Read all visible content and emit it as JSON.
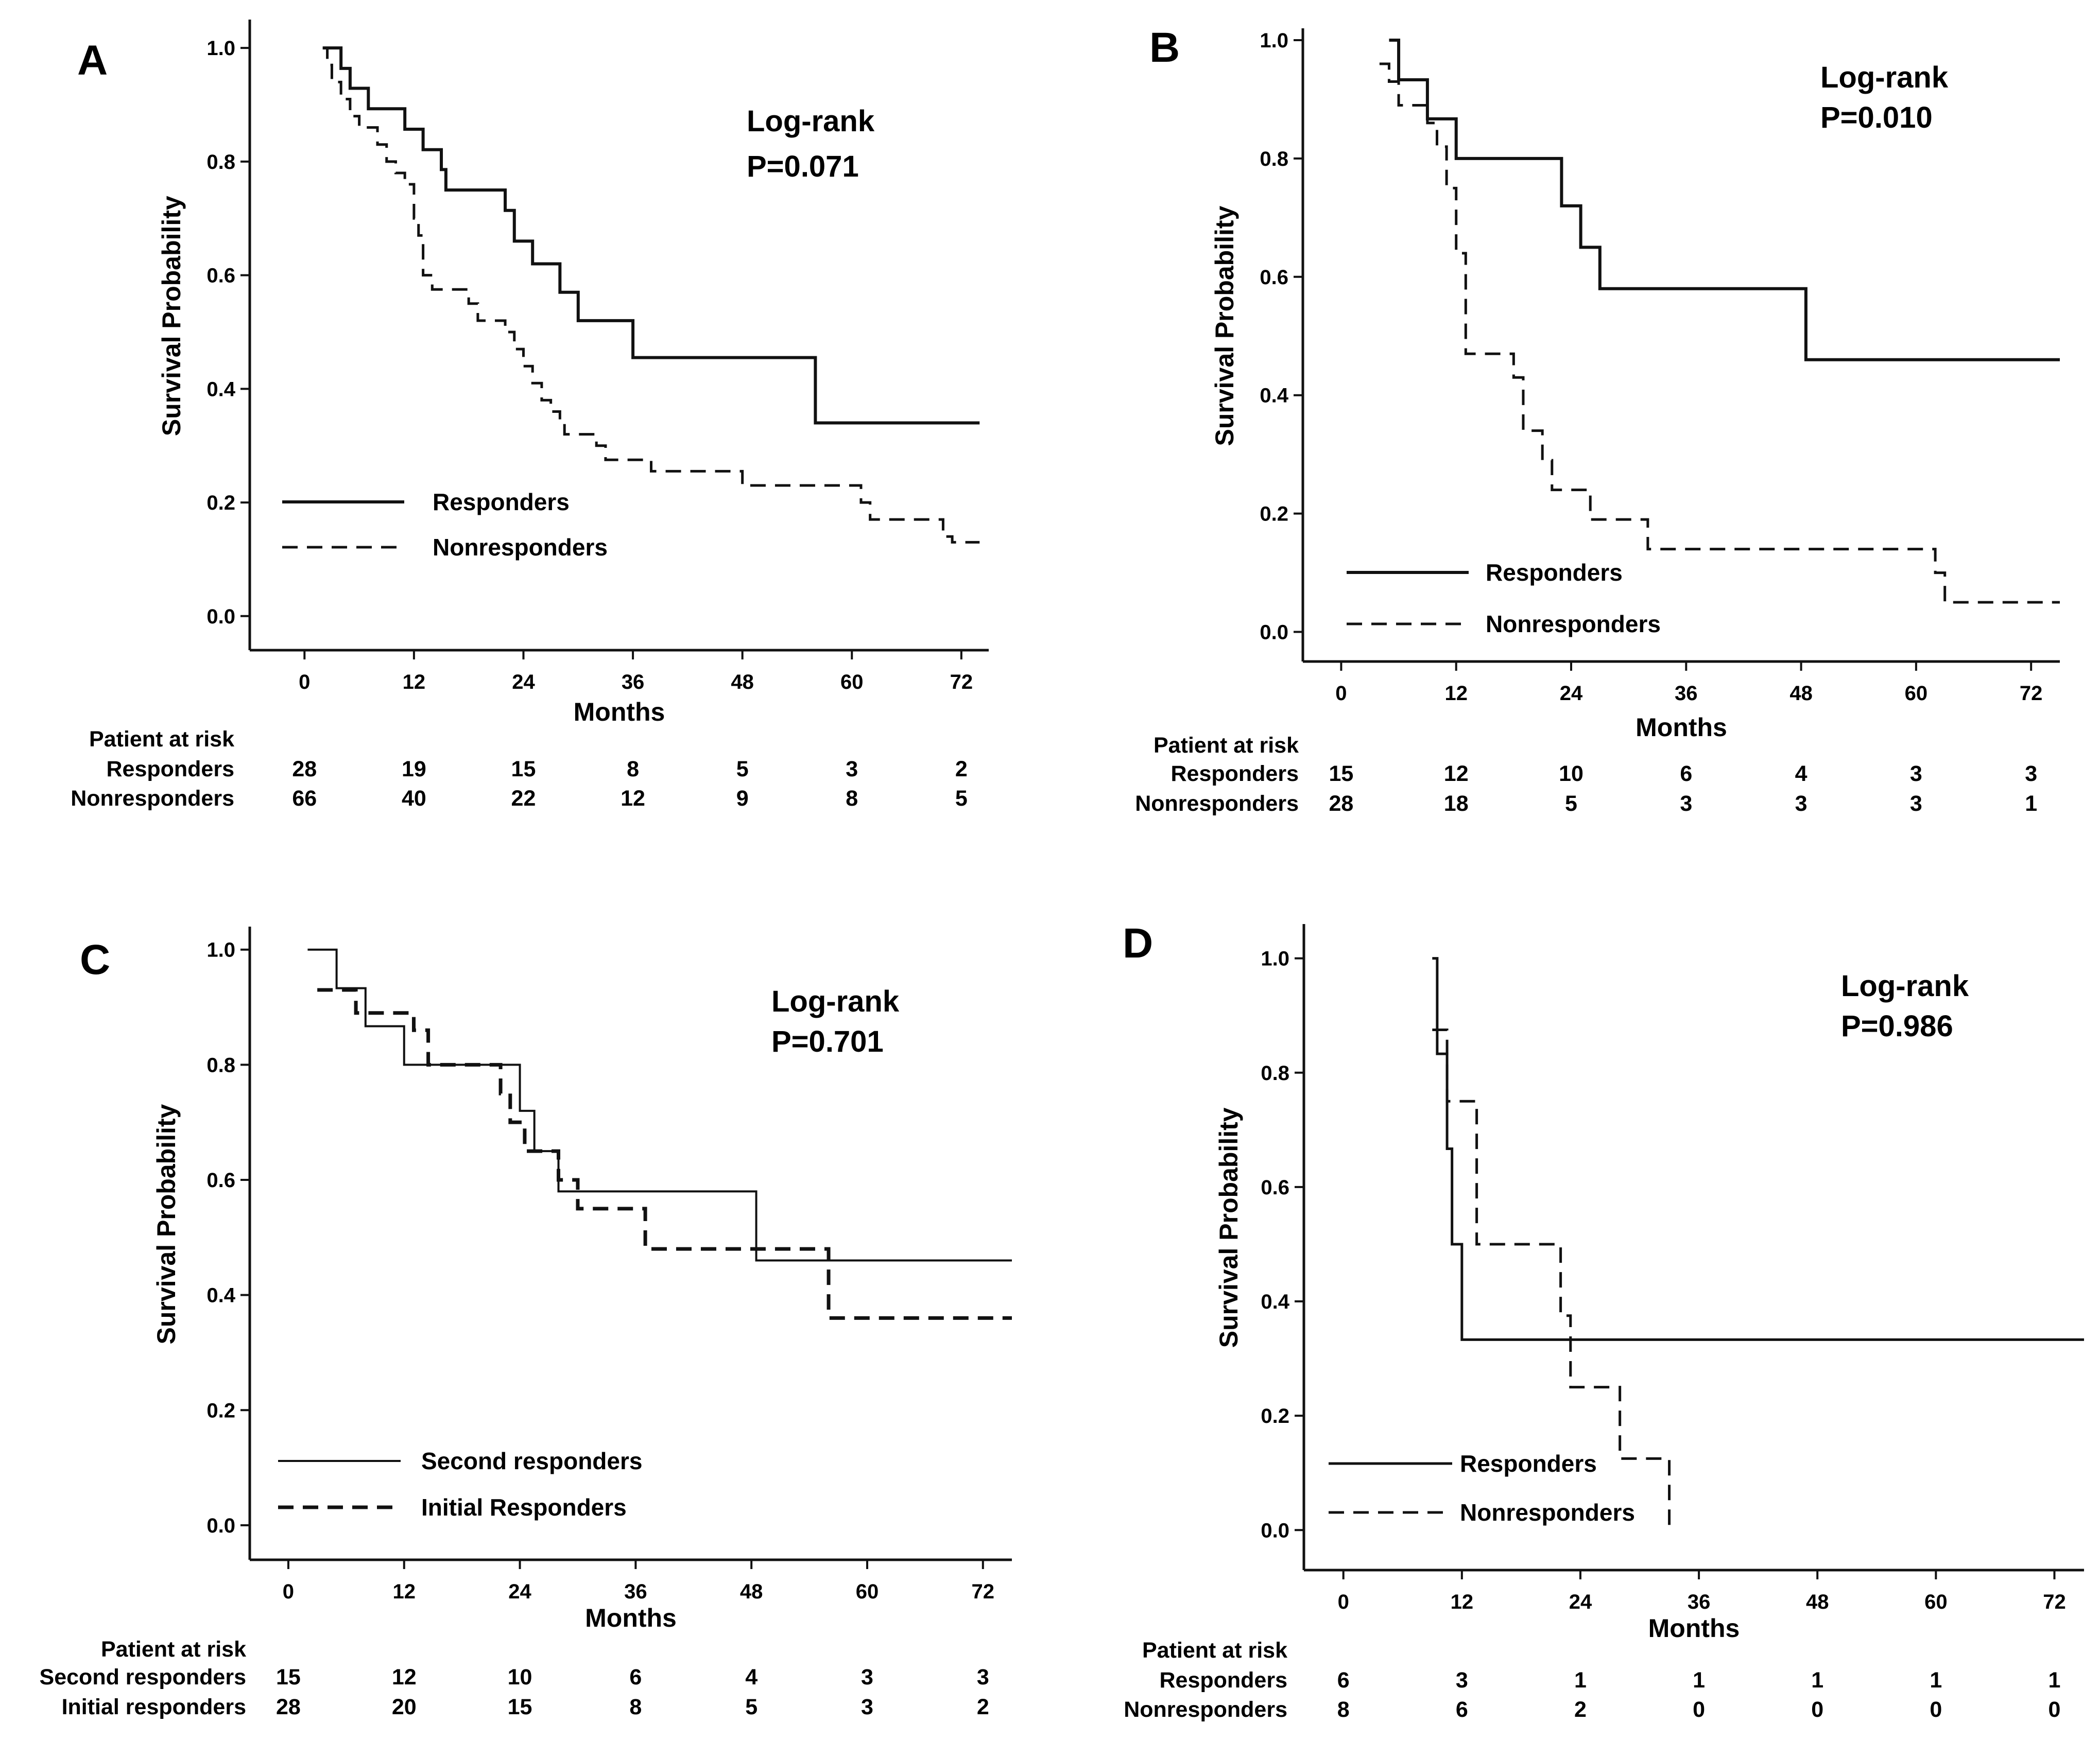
{
  "chart_data": [
    {
      "panel": "A",
      "type": "line",
      "step": true,
      "xlabel": "Months",
      "ylabel": "Survival Probability",
      "xlim": [
        -6,
        75
      ],
      "ylim": [
        -0.06,
        1.05
      ],
      "xticks": [
        "0",
        "12",
        "24",
        "36",
        "48",
        "60",
        "72"
      ],
      "yticks": [
        "0.0",
        "0.2",
        "0.4",
        "0.6",
        "0.8",
        "1.0"
      ],
      "annotation": [
        "Log-rank",
        "P=0.071"
      ],
      "series": [
        {
          "name": "Responders",
          "dash": false,
          "width": 6,
          "points": [
            [
              2,
              1.0
            ],
            [
              4,
              0.964
            ],
            [
              5,
              0.929
            ],
            [
              7,
              0.893
            ],
            [
              11,
              0.857
            ],
            [
              13,
              0.821
            ],
            [
              15,
              0.786
            ],
            [
              15.5,
              0.75
            ],
            [
              22,
              0.714
            ],
            [
              23,
              0.66
            ],
            [
              25,
              0.62
            ],
            [
              28,
              0.57
            ],
            [
              30,
              0.52
            ],
            [
              36,
              0.455
            ],
            [
              56,
              0.34
            ],
            [
              74,
              0.34
            ]
          ]
        },
        {
          "name": "Nonresponders",
          "dash": true,
          "width": 5,
          "points": [
            [
              2,
              1.0
            ],
            [
              2.5,
              0.97
            ],
            [
              3,
              0.94
            ],
            [
              4,
              0.91
            ],
            [
              5,
              0.88
            ],
            [
              6,
              0.86
            ],
            [
              8,
              0.83
            ],
            [
              9,
              0.8
            ],
            [
              10,
              0.78
            ],
            [
              11,
              0.76
            ],
            [
              12,
              0.7
            ],
            [
              12.5,
              0.67
            ],
            [
              13,
              0.6
            ],
            [
              14,
              0.575
            ],
            [
              18,
              0.55
            ],
            [
              19,
              0.52
            ],
            [
              22,
              0.5
            ],
            [
              23,
              0.47
            ],
            [
              24,
              0.44
            ],
            [
              25,
              0.41
            ],
            [
              26,
              0.38
            ],
            [
              27,
              0.36
            ],
            [
              28,
              0.34
            ],
            [
              28.5,
              0.32
            ],
            [
              32,
              0.3
            ],
            [
              33,
              0.275
            ],
            [
              38,
              0.255
            ],
            [
              48,
              0.23
            ],
            [
              61,
              0.2
            ],
            [
              62,
              0.17
            ],
            [
              70,
              0.14
            ],
            [
              71,
              0.13
            ],
            [
              74,
              0.13
            ]
          ]
        }
      ],
      "legend": [
        "Responders",
        "Nonresponders"
      ],
      "risk_table": {
        "title": "Patient at risk",
        "rows": [
          {
            "label": "Responders",
            "values": [
              "28",
              "19",
              "15",
              "8",
              "5",
              "3",
              "2"
            ]
          },
          {
            "label": "Nonresponders",
            "values": [
              "66",
              "40",
              "22",
              "12",
              "9",
              "8",
              "5"
            ]
          }
        ]
      }
    },
    {
      "panel": "B",
      "type": "line",
      "step": true,
      "xlabel": "Months",
      "ylabel": "Survival Probability",
      "xlim": [
        -4,
        75
      ],
      "ylim": [
        -0.05,
        1.02
      ],
      "xticks": [
        "0",
        "12",
        "24",
        "36",
        "48",
        "60",
        "72"
      ],
      "yticks": [
        "0.0",
        "0.2",
        "0.4",
        "0.6",
        "0.8",
        "1.0"
      ],
      "annotation": [
        "Log-rank",
        "P=0.010"
      ],
      "series": [
        {
          "name": "Responders",
          "dash": false,
          "width": 6,
          "points": [
            [
              5,
              1.0
            ],
            [
              6,
              0.933
            ],
            [
              9,
              0.867
            ],
            [
              12,
              0.8
            ],
            [
              22,
              0.8
            ],
            [
              23,
              0.72
            ],
            [
              25,
              0.65
            ],
            [
              27,
              0.58
            ],
            [
              48,
              0.58
            ],
            [
              48.5,
              0.46
            ],
            [
              75,
              0.46
            ]
          ]
        },
        {
          "name": "Nonresponders",
          "dash": true,
          "width": 5,
          "points": [
            [
              4,
              0.96
            ],
            [
              5,
              0.93
            ],
            [
              6,
              0.89
            ],
            [
              9,
              0.86
            ],
            [
              10,
              0.82
            ],
            [
              11,
              0.75
            ],
            [
              12,
              0.64
            ],
            [
              13,
              0.47
            ],
            [
              18,
              0.43
            ],
            [
              19,
              0.34
            ],
            [
              21,
              0.29
            ],
            [
              22,
              0.24
            ],
            [
              26,
              0.19
            ],
            [
              32,
              0.14
            ],
            [
              60,
              0.14
            ],
            [
              62,
              0.1
            ],
            [
              63,
              0.05
            ],
            [
              75,
              0.05
            ]
          ]
        }
      ],
      "legend": [
        "Responders",
        "Nonresponders"
      ],
      "risk_table": {
        "title": "Patient at risk",
        "rows": [
          {
            "label": "Responders",
            "values": [
              "15",
              "12",
              "10",
              "6",
              "4",
              "3",
              "3"
            ]
          },
          {
            "label": "Nonresponders",
            "values": [
              "28",
              "18",
              "5",
              "3",
              "3",
              "3",
              "1"
            ]
          }
        ]
      }
    },
    {
      "panel": "C",
      "type": "line",
      "step": true,
      "xlabel": "Months",
      "ylabel": "Survival Probability",
      "xlim": [
        -4,
        75
      ],
      "ylim": [
        -0.06,
        1.04
      ],
      "xticks": [
        "0",
        "12",
        "24",
        "36",
        "48",
        "60",
        "72"
      ],
      "yticks": [
        "0.0",
        "0.2",
        "0.4",
        "0.6",
        "0.8",
        "1.0"
      ],
      "annotation": [
        "Log-rank",
        "P=0.701"
      ],
      "series": [
        {
          "name": "Second responders",
          "dash": false,
          "width": 4,
          "points": [
            [
              2,
              1.0
            ],
            [
              5,
              0.933
            ],
            [
              8,
              0.867
            ],
            [
              12,
              0.8
            ],
            [
              23,
              0.8
            ],
            [
              24,
              0.72
            ],
            [
              25.5,
              0.65
            ],
            [
              28,
              0.58
            ],
            [
              48,
              0.58
            ],
            [
              48.5,
              0.46
            ],
            [
              75,
              0.46
            ]
          ]
        },
        {
          "name": "Initial Responders",
          "dash": true,
          "width": 7,
          "points": [
            [
              3,
              0.93
            ],
            [
              7,
              0.89
            ],
            [
              13,
              0.86
            ],
            [
              14.5,
              0.8
            ],
            [
              22,
              0.75
            ],
            [
              23,
              0.7
            ],
            [
              24.5,
              0.65
            ],
            [
              28,
              0.6
            ],
            [
              30,
              0.55
            ],
            [
              37,
              0.48
            ],
            [
              56,
              0.36
            ],
            [
              75,
              0.36
            ]
          ]
        }
      ],
      "legend": [
        "Second responders",
        "Initial Responders"
      ],
      "risk_table": {
        "title": "Patient at risk",
        "rows": [
          {
            "label": "Second responders",
            "values": [
              "15",
              "12",
              "10",
              "6",
              "4",
              "3",
              "3"
            ]
          },
          {
            "label": "Initial responders",
            "values": [
              "28",
              "20",
              "15",
              "8",
              "5",
              "3",
              "2"
            ]
          }
        ]
      }
    },
    {
      "panel": "D",
      "type": "line",
      "step": true,
      "xlabel": "Months",
      "ylabel": "Survival Probability",
      "xlim": [
        -4,
        75
      ],
      "ylim": [
        -0.07,
        1.06
      ],
      "xticks": [
        "0",
        "12",
        "24",
        "36",
        "48",
        "60",
        "72"
      ],
      "yticks": [
        "0.0",
        "0.2",
        "0.4",
        "0.6",
        "0.8",
        "1.0"
      ],
      "annotation": [
        "Log-rank",
        "P=0.986"
      ],
      "series": [
        {
          "name": "Responders",
          "dash": false,
          "width": 5,
          "points": [
            [
              9,
              1.0
            ],
            [
              9.5,
              0.833
            ],
            [
              10.5,
              0.667
            ],
            [
              11,
              0.5
            ],
            [
              12,
              0.333
            ],
            [
              75,
              0.333
            ]
          ]
        },
        {
          "name": "Nonresponders",
          "dash": true,
          "width": 5,
          "points": [
            [
              9,
              0.875
            ],
            [
              10.5,
              0.75
            ],
            [
              13.5,
              0.5
            ],
            [
              22,
              0.375
            ],
            [
              23,
              0.25
            ],
            [
              28,
              0.125
            ],
            [
              33,
              0.125
            ],
            [
              33,
              0.0
            ]
          ]
        }
      ],
      "legend": [
        "Responders",
        "Nonresponders"
      ],
      "risk_table": {
        "title": "Patient at risk",
        "rows": [
          {
            "label": "Responders",
            "values": [
              "6",
              "3",
              "1",
              "1",
              "1",
              "1",
              "1"
            ]
          },
          {
            "label": "Nonresponders",
            "values": [
              "8",
              "6",
              "2",
              "0",
              "0",
              "0",
              "0"
            ]
          }
        ]
      }
    }
  ]
}
